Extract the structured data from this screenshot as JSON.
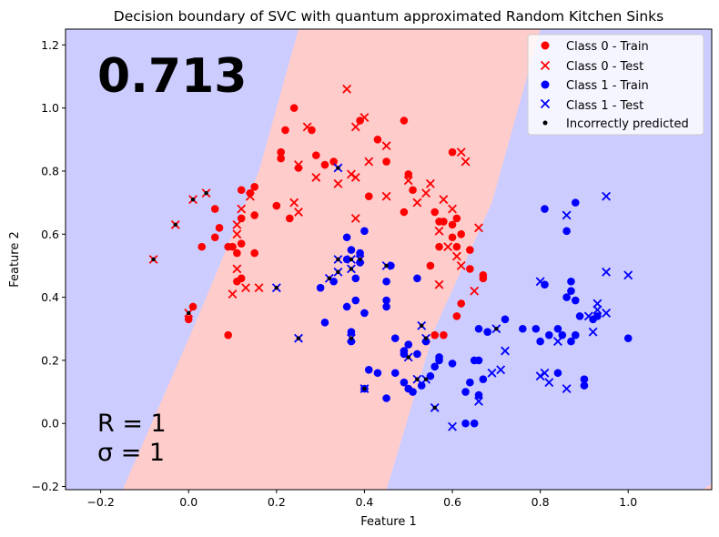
{
  "chart_data": {
    "type": "scatter",
    "title": "Decision boundary of SVC with quantum approximated Random Kitchen Sinks",
    "xlabel": "Feature 1",
    "ylabel": "Feature 2",
    "xlim": [
      -0.28,
      1.19
    ],
    "ylim": [
      -0.21,
      1.25
    ],
    "xticks": [
      -0.2,
      0.0,
      0.2,
      0.4,
      0.6,
      0.8,
      1.0
    ],
    "xtick_labels": [
      "−0.2",
      "0.0",
      "0.2",
      "0.4",
      "0.6",
      "0.8",
      "1.0"
    ],
    "yticks": [
      -0.2,
      0.0,
      0.2,
      0.4,
      0.6,
      0.8,
      1.0,
      1.2
    ],
    "ytick_labels": [
      "−0.2",
      "0.0",
      "0.2",
      "0.4",
      "0.6",
      "0.8",
      "1.0",
      "1.2"
    ],
    "score_label": "0.713",
    "param_r": "R = 1",
    "param_sigma": "σ = 1",
    "colors": {
      "class0": "#ff0000",
      "class1": "#0000ff",
      "region0": "#ffcccc",
      "region1": "#ccccff",
      "wrong": "#000000"
    },
    "decision_region": {
      "description": "diagonal band predicted as class 0, class 1 elsewhere",
      "left_boundary": [
        [
          -0.15,
          -0.21
        ],
        [
          0.01,
          0.3
        ],
        [
          0.16,
          0.8
        ],
        [
          0.25,
          1.25
        ]
      ],
      "right_boundary": [
        [
          0.45,
          -0.21
        ],
        [
          0.56,
          0.3
        ],
        [
          0.69,
          0.7
        ],
        [
          0.8,
          1.25
        ]
      ],
      "bottom_right_corner": [
        [
          1.17,
          -0.21
        ],
        [
          1.19,
          -0.21
        ],
        [
          1.19,
          -0.19
        ]
      ]
    },
    "legend": {
      "position": "upper right",
      "entries": [
        "Class 0 - Train",
        "Class 0 - Test",
        "Class 1 - Train",
        "Class 1 - Test",
        "Incorrectly predicted"
      ]
    },
    "series": [
      {
        "name": "Class 0 - Train",
        "marker": "o",
        "points": [
          [
            0.24,
            1.0
          ],
          [
            0.39,
            0.96
          ],
          [
            0.49,
            0.96
          ],
          [
            0.22,
            0.93
          ],
          [
            0.28,
            0.93
          ],
          [
            0.43,
            0.9
          ],
          [
            0.21,
            0.86
          ],
          [
            0.21,
            0.84
          ],
          [
            0.31,
            0.82
          ],
          [
            0.33,
            0.83
          ],
          [
            0.29,
            0.85
          ],
          [
            0.45,
            0.83
          ],
          [
            0.5,
            0.79
          ],
          [
            0.6,
            0.86
          ],
          [
            0.25,
            0.81
          ],
          [
            0.15,
            0.75
          ],
          [
            0.14,
            0.73
          ],
          [
            0.12,
            0.74
          ],
          [
            0.41,
            0.72
          ],
          [
            0.51,
            0.74
          ],
          [
            0.2,
            0.69
          ],
          [
            0.23,
            0.65
          ],
          [
            0.12,
            0.65
          ],
          [
            0.15,
            0.66
          ],
          [
            0.49,
            0.67
          ],
          [
            0.56,
            0.67
          ],
          [
            0.57,
            0.64
          ],
          [
            0.58,
            0.64
          ],
          [
            0.6,
            0.63
          ],
          [
            0.61,
            0.65
          ],
          [
            0.6,
            0.59
          ],
          [
            0.62,
            0.6
          ],
          [
            0.64,
            0.55
          ],
          [
            0.61,
            0.56
          ],
          [
            0.57,
            0.56
          ],
          [
            0.06,
            0.68
          ],
          [
            0.06,
            0.59
          ],
          [
            0.03,
            0.56
          ],
          [
            0.07,
            0.62
          ],
          [
            0.1,
            0.56
          ],
          [
            0.11,
            0.54
          ],
          [
            0.12,
            0.57
          ],
          [
            0.15,
            0.54
          ],
          [
            0.09,
            0.56
          ],
          [
            0.12,
            0.46
          ],
          [
            0.11,
            0.45
          ],
          [
            0.55,
            0.5
          ],
          [
            0.64,
            0.49
          ],
          [
            0.67,
            0.47
          ],
          [
            0.67,
            0.46
          ],
          [
            0.62,
            0.38
          ],
          [
            0.61,
            0.34
          ],
          [
            0.01,
            0.37
          ],
          [
            0.0,
            0.33
          ],
          [
            0.09,
            0.28
          ],
          [
            0.56,
            0.28
          ],
          [
            0.58,
            0.28
          ]
        ]
      },
      {
        "name": "Class 0 - Test",
        "marker": "x",
        "points": [
          [
            0.36,
            1.06
          ],
          [
            0.27,
            0.94
          ],
          [
            0.4,
            0.97
          ],
          [
            0.38,
            0.94
          ],
          [
            0.45,
            0.88
          ],
          [
            0.25,
            0.82
          ],
          [
            0.29,
            0.78
          ],
          [
            0.38,
            0.78
          ],
          [
            0.37,
            0.79
          ],
          [
            0.41,
            0.83
          ],
          [
            0.5,
            0.77
          ],
          [
            0.55,
            0.76
          ],
          [
            0.62,
            0.86
          ],
          [
            0.63,
            0.83
          ],
          [
            0.34,
            0.76
          ],
          [
            0.45,
            0.72
          ],
          [
            0.52,
            0.7
          ],
          [
            0.58,
            0.71
          ],
          [
            0.54,
            0.73
          ],
          [
            0.6,
            0.68
          ],
          [
            0.24,
            0.7
          ],
          [
            0.25,
            0.67
          ],
          [
            0.38,
            0.65
          ],
          [
            0.11,
            0.63
          ],
          [
            0.11,
            0.6
          ],
          [
            0.12,
            0.68
          ],
          [
            0.14,
            0.72
          ],
          [
            0.57,
            0.61
          ],
          [
            0.59,
            0.56
          ],
          [
            0.62,
            0.5
          ],
          [
            0.61,
            0.53
          ],
          [
            0.66,
            0.62
          ],
          [
            0.65,
            0.42
          ],
          [
            0.57,
            0.44
          ],
          [
            0.11,
            0.49
          ],
          [
            0.1,
            0.41
          ],
          [
            0.13,
            0.43
          ],
          [
            0.16,
            0.43
          ]
        ]
      },
      {
        "name": "Class 1 - Train",
        "marker": "o",
        "points": [
          [
            0.36,
            0.59
          ],
          [
            0.37,
            0.55
          ],
          [
            0.4,
            0.61
          ],
          [
            0.36,
            0.52
          ],
          [
            0.39,
            0.54
          ],
          [
            0.39,
            0.51
          ],
          [
            0.45,
            0.45
          ],
          [
            0.52,
            0.46
          ],
          [
            0.38,
            0.46
          ],
          [
            0.46,
            0.5
          ],
          [
            0.3,
            0.43
          ],
          [
            0.33,
            0.45
          ],
          [
            0.38,
            0.39
          ],
          [
            0.36,
            0.37
          ],
          [
            0.4,
            0.35
          ],
          [
            0.45,
            0.39
          ],
          [
            0.45,
            0.37
          ],
          [
            0.31,
            0.32
          ],
          [
            0.37,
            0.29
          ],
          [
            0.37,
            0.26
          ],
          [
            0.47,
            0.27
          ],
          [
            0.5,
            0.25
          ],
          [
            0.49,
            0.23
          ],
          [
            0.49,
            0.22
          ],
          [
            0.52,
            0.22
          ],
          [
            0.54,
            0.26
          ],
          [
            0.57,
            0.21
          ],
          [
            0.57,
            0.2
          ],
          [
            0.6,
            0.19
          ],
          [
            0.56,
            0.18
          ],
          [
            0.55,
            0.15
          ],
          [
            0.41,
            0.17
          ],
          [
            0.43,
            0.16
          ],
          [
            0.47,
            0.16
          ],
          [
            0.49,
            0.13
          ],
          [
            0.5,
            0.11
          ],
          [
            0.51,
            0.1
          ],
          [
            0.53,
            0.12
          ],
          [
            0.45,
            0.08
          ],
          [
            0.66,
            0.3
          ],
          [
            0.68,
            0.29
          ],
          [
            0.72,
            0.33
          ],
          [
            0.66,
            0.2
          ],
          [
            0.65,
            0.2
          ],
          [
            0.67,
            0.14
          ],
          [
            0.64,
            0.13
          ],
          [
            0.63,
            0.1
          ],
          [
            0.66,
            0.09
          ],
          [
            0.63,
            0.0
          ],
          [
            0.65,
            0.0
          ],
          [
            0.81,
            0.68
          ],
          [
            0.86,
            0.61
          ],
          [
            0.88,
            0.7
          ],
          [
            0.81,
            0.44
          ],
          [
            0.87,
            0.45
          ],
          [
            0.87,
            0.42
          ],
          [
            0.86,
            0.4
          ],
          [
            0.88,
            0.39
          ],
          [
            0.89,
            0.34
          ],
          [
            0.92,
            0.33
          ],
          [
            0.93,
            0.34
          ],
          [
            0.84,
            0.3
          ],
          [
            0.85,
            0.28
          ],
          [
            0.88,
            0.28
          ],
          [
            0.87,
            0.26
          ],
          [
            0.82,
            0.28
          ],
          [
            0.8,
            0.26
          ],
          [
            0.79,
            0.3
          ],
          [
            0.76,
            0.3
          ],
          [
            0.84,
            0.16
          ],
          [
            0.9,
            0.14
          ],
          [
            0.9,
            0.12
          ],
          [
            1.0,
            0.27
          ],
          [
            0.4,
            0.11
          ]
        ]
      },
      {
        "name": "Class 1 - Test",
        "marker": "x",
        "points": [
          [
            0.34,
            0.81
          ],
          [
            0.45,
            0.5
          ],
          [
            0.34,
            0.52
          ],
          [
            0.37,
            0.52
          ],
          [
            0.39,
            0.52
          ],
          [
            0.34,
            0.48
          ],
          [
            0.37,
            0.49
          ],
          [
            0.2,
            0.43
          ],
          [
            0.32,
            0.46
          ],
          [
            0.25,
            0.27
          ],
          [
            0.37,
            0.27
          ],
          [
            0.53,
            0.31
          ],
          [
            0.54,
            0.27
          ],
          [
            0.5,
            0.21
          ],
          [
            0.52,
            0.14
          ],
          [
            0.54,
            0.14
          ],
          [
            0.4,
            0.11
          ],
          [
            0.56,
            0.05
          ],
          [
            0.6,
            -0.01
          ],
          [
            0.7,
            0.3
          ],
          [
            0.72,
            0.23
          ],
          [
            0.69,
            0.16
          ],
          [
            0.71,
            0.17
          ],
          [
            0.66,
            0.07
          ],
          [
            0.86,
            0.66
          ],
          [
            0.95,
            0.72
          ],
          [
            1.0,
            0.47
          ],
          [
            0.95,
            0.48
          ],
          [
            0.8,
            0.45
          ],
          [
            0.93,
            0.38
          ],
          [
            0.93,
            0.36
          ],
          [
            0.95,
            0.35
          ],
          [
            0.91,
            0.34
          ],
          [
            0.92,
            0.29
          ],
          [
            0.84,
            0.26
          ],
          [
            0.81,
            0.16
          ],
          [
            0.82,
            0.13
          ],
          [
            0.8,
            0.15
          ],
          [
            0.86,
            0.11
          ]
        ]
      }
    ],
    "incorrect_points": [
      [
        -0.03,
        0.63
      ],
      [
        0.01,
        0.71
      ],
      [
        0.04,
        0.73
      ],
      [
        -0.08,
        0.52
      ],
      [
        0.0,
        0.35
      ],
      [
        0.2,
        0.43
      ],
      [
        0.25,
        0.27
      ],
      [
        0.34,
        0.81
      ],
      [
        0.34,
        0.52
      ],
      [
        0.37,
        0.52
      ],
      [
        0.39,
        0.52
      ],
      [
        0.34,
        0.48
      ],
      [
        0.37,
        0.49
      ],
      [
        0.32,
        0.46
      ],
      [
        0.45,
        0.5
      ],
      [
        0.37,
        0.27
      ],
      [
        0.53,
        0.31
      ],
      [
        0.54,
        0.27
      ],
      [
        0.5,
        0.21
      ],
      [
        0.52,
        0.14
      ],
      [
        0.54,
        0.14
      ],
      [
        0.4,
        0.11
      ],
      [
        0.56,
        0.05
      ],
      [
        0.7,
        0.3
      ]
    ],
    "incorrect_class0_test": [
      [
        -0.03,
        0.63
      ],
      [
        0.01,
        0.71
      ],
      [
        0.04,
        0.73
      ],
      [
        -0.08,
        0.52
      ],
      [
        0.0,
        0.35
      ]
    ]
  }
}
